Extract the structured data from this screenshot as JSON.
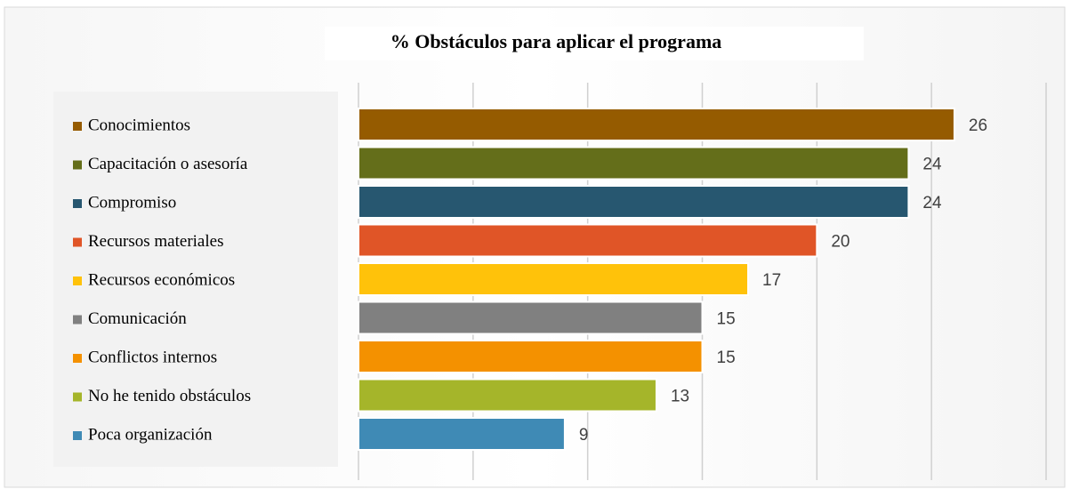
{
  "chart_data": {
    "type": "hbar",
    "title": "%  Obstáculos para aplicar el programa",
    "categories": [
      "Conocimientos",
      "Capacitación o asesoría",
      "Compromiso",
      "Recursos materiales",
      "Recursos económicos",
      "Comunicación",
      "Conflictos internos",
      "No he tenido obstáculos",
      "Poca organización"
    ],
    "values": [
      26,
      24,
      24,
      20,
      17,
      15,
      15,
      13,
      9
    ],
    "colors": [
      "#955b00",
      "#646e1a",
      "#275770",
      "#e05527",
      "#ffc20a",
      "#808080",
      "#f49100",
      "#a5b52a",
      "#3f8ab5"
    ],
    "xlim": [
      0,
      30
    ],
    "xticks": [
      0,
      5,
      10,
      15,
      20,
      25,
      30
    ],
    "grid": true,
    "legend": "left"
  }
}
